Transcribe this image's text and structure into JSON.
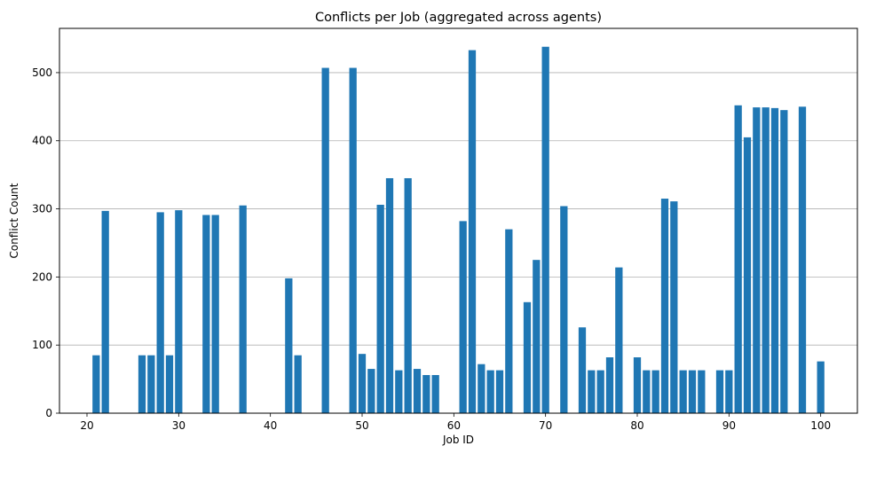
{
  "chart_data": {
    "type": "bar",
    "title": "Conflicts per Job (aggregated across agents)",
    "xlabel": "Job ID",
    "ylabel": "Conflict Count",
    "xlim": [
      17,
      104
    ],
    "ylim": [
      0,
      565
    ],
    "xticks": [
      20,
      30,
      40,
      50,
      60,
      70,
      80,
      90,
      100
    ],
    "yticks": [
      0,
      100,
      200,
      300,
      400,
      500
    ],
    "grid": "y",
    "color": "#1f77b4",
    "x": [
      21,
      22,
      26,
      27,
      28,
      29,
      30,
      33,
      34,
      37,
      42,
      43,
      46,
      49,
      50,
      51,
      52,
      53,
      54,
      55,
      56,
      57,
      58,
      61,
      62,
      63,
      64,
      65,
      66,
      68,
      69,
      70,
      72,
      74,
      75,
      76,
      77,
      78,
      80,
      81,
      82,
      83,
      84,
      85,
      86,
      87,
      89,
      90,
      91,
      92,
      93,
      94,
      95,
      96,
      98,
      100
    ],
    "values": [
      85,
      297,
      85,
      85,
      295,
      85,
      298,
      291,
      291,
      305,
      198,
      85,
      507,
      507,
      87,
      65,
      306,
      345,
      63,
      345,
      65,
      56,
      56,
      282,
      533,
      72,
      63,
      63,
      270,
      163,
      225,
      538,
      304,
      126,
      63,
      63,
      82,
      214,
      82,
      63,
      63,
      315,
      311,
      63,
      63,
      63,
      63,
      63,
      452,
      405,
      449,
      449,
      448,
      445,
      450,
      76
    ]
  }
}
